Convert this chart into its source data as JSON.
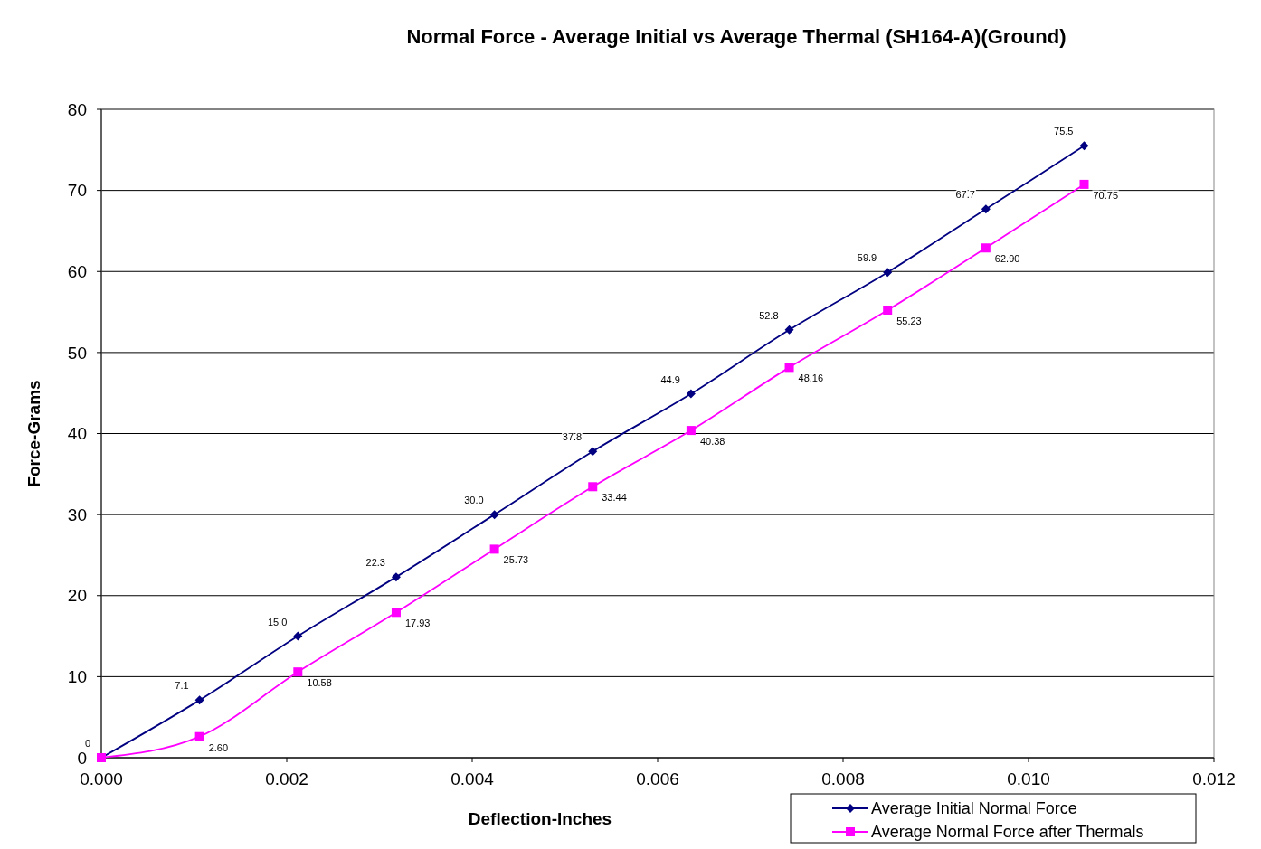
{
  "chart_data": {
    "type": "line",
    "title": "Normal Force - Average Initial vs Average Thermal (SH164-A)(Ground)",
    "xlabel": "Deflection-Inches",
    "ylabel": "Force-Grams",
    "x": [
      0,
      0.00106,
      0.00212,
      0.00318,
      0.00424,
      0.0053,
      0.00636,
      0.00742,
      0.00848,
      0.00954,
      0.0106
    ],
    "series": [
      {
        "name": "Average Initial Normal Force",
        "color": "#000080",
        "marker": "diamond",
        "values": [
          0,
          7.1,
          15.0,
          22.3,
          30.0,
          37.8,
          44.9,
          52.8,
          59.9,
          67.7,
          75.5
        ],
        "value_labels": [
          "0",
          "7.1",
          "15.0",
          "22.3",
          "30.0",
          "37.8",
          "44.9",
          "52.8",
          "59.9",
          "67.7",
          "75.5"
        ]
      },
      {
        "name": "Average Normal Force after Thermals",
        "color": "#ff00ff",
        "marker": "square",
        "values": [
          0,
          2.6,
          10.58,
          17.93,
          25.73,
          33.44,
          40.38,
          48.16,
          55.23,
          62.9,
          70.75
        ],
        "value_labels": [
          null,
          "2.60",
          "10.58",
          "17.93",
          "25.73",
          "33.44",
          "40.38",
          "48.16",
          "55.23",
          "62.90",
          "70.75"
        ]
      }
    ],
    "xlim": [
      0,
      0.012
    ],
    "xticks": [
      {
        "value": 0,
        "label": "0.000"
      },
      {
        "value": 0.002,
        "label": "0.002"
      },
      {
        "value": 0.004,
        "label": "0.004"
      },
      {
        "value": 0.006,
        "label": "0.006"
      },
      {
        "value": 0.008,
        "label": "0.008"
      },
      {
        "value": 0.01,
        "label": "0.010"
      },
      {
        "value": 0.012,
        "label": "0.012"
      }
    ],
    "ylim": [
      0,
      80
    ],
    "yticks": [
      0,
      10,
      20,
      30,
      40,
      50,
      60,
      70,
      80
    ],
    "grid": "y",
    "legend": "bottom right"
  }
}
